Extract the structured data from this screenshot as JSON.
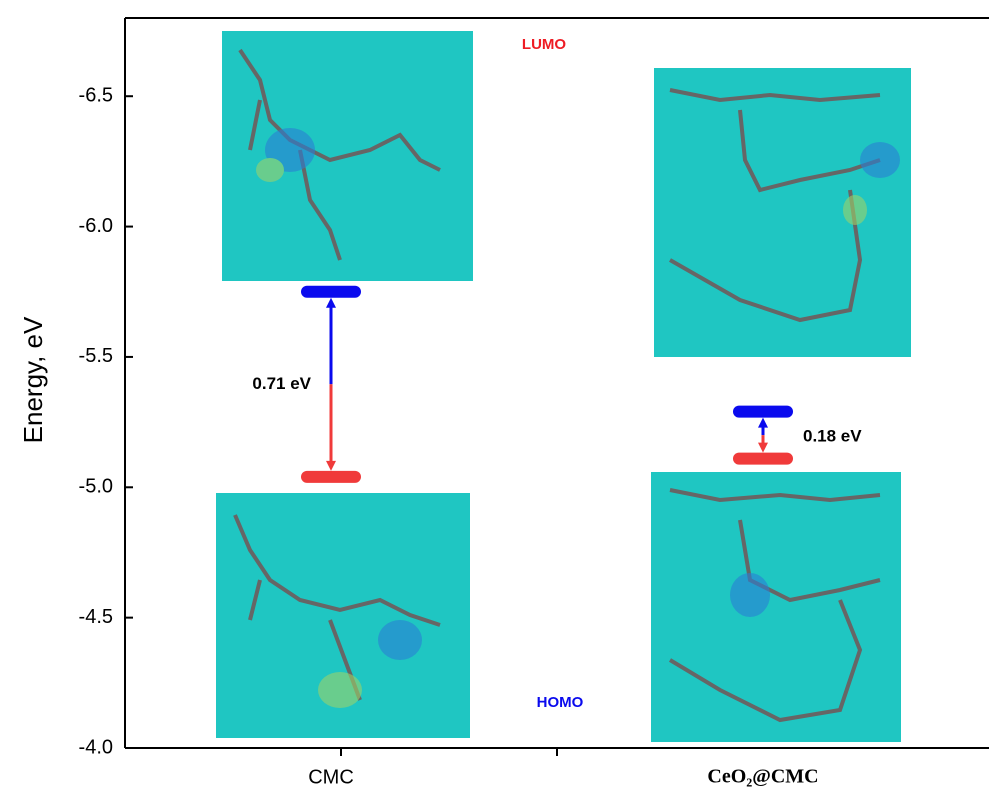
{
  "chart_data": {
    "type": "energy_level",
    "y_label": "Energy, eV",
    "categories": [
      "CMC",
      "CeO₂@CMC"
    ],
    "ylim": [
      -4.0,
      -6.8
    ],
    "yticks": [
      {
        "value": -4.0,
        "label": "-4.0"
      },
      -4.5,
      {
        "value": -5.0,
        "label": "-5.0"
      },
      -5.5,
      {
        "value": -6.0,
        "label": "-6.0"
      },
      -6.5
    ],
    "series": [
      {
        "name": "LUMO",
        "color": "#0a0aee",
        "label_color": "#ee1c24",
        "values": [
          -5.75,
          -5.29
        ]
      },
      {
        "name": "HOMO",
        "color": "#f03a3a",
        "label_color": "#0a0aee",
        "values": [
          -5.04,
          -5.11
        ]
      }
    ],
    "gap_labels": [
      "0.71 eV",
      "0.18 eV"
    ]
  }
}
